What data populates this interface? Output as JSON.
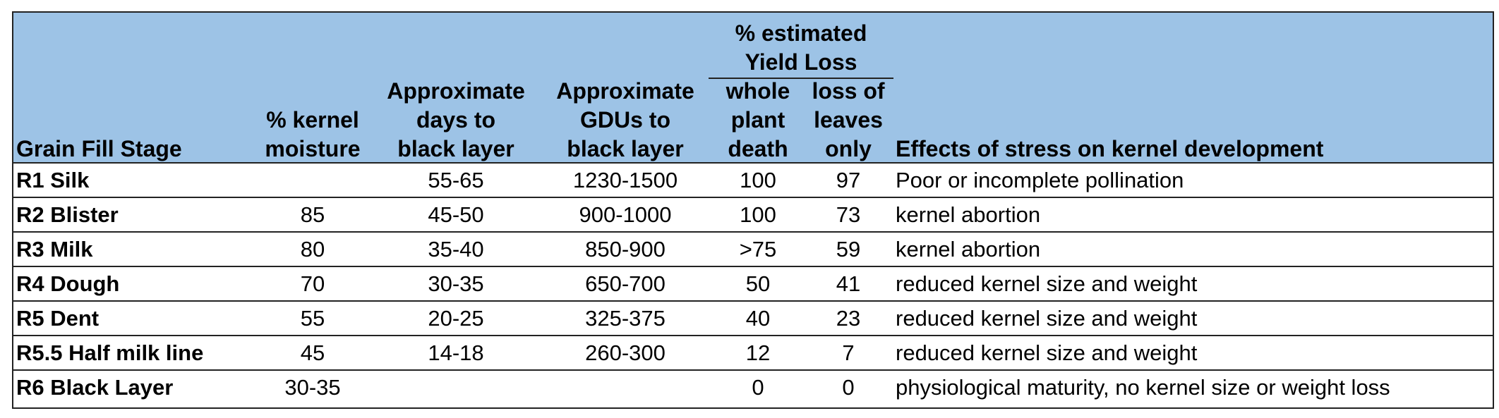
{
  "headers": {
    "stage": "Grain Fill Stage",
    "moisture": [
      "% kernel",
      "moisture"
    ],
    "days": [
      "Approximate",
      "days to",
      "black layer"
    ],
    "gdus": [
      "Approximate",
      "GDUs to",
      "black layer"
    ],
    "yield_loss_group": [
      "% estimated",
      "Yield Loss"
    ],
    "whole_plant": [
      "whole",
      "plant",
      "death"
    ],
    "leaves_only": [
      "loss of",
      "leaves",
      "only"
    ],
    "effects": "Effects of stress on kernel development"
  },
  "rows": [
    {
      "stage": "R1 Silk",
      "moisture": "",
      "days": "55-65",
      "gdus": "1230-1500",
      "whole_plant": "100",
      "leaves_only": "97",
      "effects": "Poor or incomplete pollination"
    },
    {
      "stage": "R2 Blister",
      "moisture": "85",
      "days": "45-50",
      "gdus": "900-1000",
      "whole_plant": "100",
      "leaves_only": "73",
      "effects": "kernel abortion"
    },
    {
      "stage": "R3 Milk",
      "moisture": "80",
      "days": "35-40",
      "gdus": "850-900",
      "whole_plant": ">75",
      "leaves_only": "59",
      "effects": "kernel abortion"
    },
    {
      "stage": "R4 Dough",
      "moisture": "70",
      "days": "30-35",
      "gdus": "650-700",
      "whole_plant": "50",
      "leaves_only": "41",
      "effects": "reduced kernel size and weight"
    },
    {
      "stage": "R5 Dent",
      "moisture": "55",
      "days": "20-25",
      "gdus": "325-375",
      "whole_plant": "40",
      "leaves_only": "23",
      "effects": "reduced kernel size and weight"
    },
    {
      "stage": "R5.5 Half milk line",
      "moisture": "45",
      "days": "14-18",
      "gdus": "260-300",
      "whole_plant": "12",
      "leaves_only": "7",
      "effects": "reduced kernel size and weight"
    },
    {
      "stage": "R6 Black Layer",
      "moisture": "30-35",
      "days": "",
      "gdus": "",
      "whole_plant": "0",
      "leaves_only": "0",
      "effects": "physiological maturity, no kernel size or weight loss"
    }
  ]
}
